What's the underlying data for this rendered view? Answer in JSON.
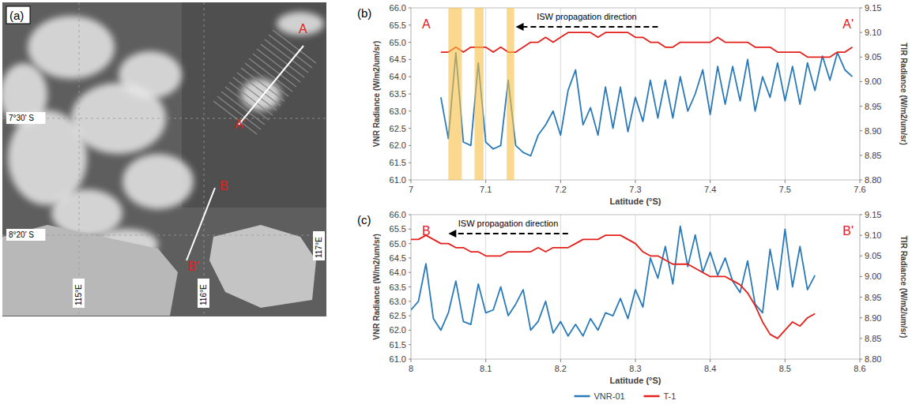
{
  "image_panel": {
    "label": "(a)",
    "lat_labels": [
      "7°30' S",
      "8°20' S"
    ],
    "lon_labels": [
      "115°E",
      "116°E",
      "117°E"
    ],
    "transects": [
      [
        "A",
        "A'"
      ],
      [
        "B",
        "B'"
      ]
    ]
  },
  "chart_data": [
    {
      "type": "line",
      "panel_label": "(b)",
      "x_label": "Latitude (°S)",
      "y_label": "VNR Radiance (W/m2/um/sr)",
      "y2_label": "TIR Radiance (W/m2/um/sr)",
      "start_label": "A",
      "end_label": "A'",
      "annotation": "ISW propagation direction",
      "annotation_arrow_x": [
        7.33,
        7.14
      ],
      "highlight_bands": [
        [
          7.05,
          7.068
        ],
        [
          7.085,
          7.097
        ],
        [
          7.128,
          7.138
        ]
      ],
      "xlim": [
        7,
        7.6
      ],
      "xticks": [
        7,
        7.1,
        7.2,
        7.3,
        7.4,
        7.5,
        7.6
      ],
      "ylim": [
        61,
        66
      ],
      "yticks": [
        {
          "value": 61,
          "label": "61.0"
        },
        {
          "value": 61.5,
          "label": "61.5"
        },
        {
          "value": 62,
          "label": "62.0"
        },
        {
          "value": 62.5,
          "label": "62.5"
        },
        {
          "value": 63,
          "label": "63.0"
        },
        {
          "value": 63.5,
          "label": "63.5"
        },
        {
          "value": 64,
          "label": "64.0"
        },
        {
          "value": 64.5,
          "label": "64.5"
        },
        {
          "value": 65,
          "label": "65.0"
        },
        {
          "value": 65.5,
          "label": "65.5"
        },
        {
          "value": 66,
          "label": "66.0"
        }
      ],
      "y2lim": [
        8.8,
        9.15
      ],
      "y2ticks": [
        {
          "value": 8.8,
          "label": "8.80"
        },
        {
          "value": 8.85,
          "label": "8.85"
        },
        {
          "value": 8.9,
          "label": "8.90"
        },
        {
          "value": 8.95,
          "label": "8.95"
        },
        {
          "value": 9,
          "label": "9.00"
        },
        {
          "value": 9.05,
          "label": "9.05"
        },
        {
          "value": 9.1,
          "label": "9.10"
        },
        {
          "value": 9.15,
          "label": "9.15"
        }
      ],
      "grid": "x",
      "x": [
        7.04,
        7.05,
        7.06,
        7.07,
        7.08,
        7.09,
        7.1,
        7.11,
        7.12,
        7.13,
        7.14,
        7.15,
        7.16,
        7.17,
        7.18,
        7.19,
        7.2,
        7.21,
        7.22,
        7.23,
        7.24,
        7.25,
        7.26,
        7.27,
        7.28,
        7.29,
        7.3,
        7.31,
        7.32,
        7.33,
        7.34,
        7.35,
        7.36,
        7.37,
        7.38,
        7.39,
        7.4,
        7.41,
        7.42,
        7.43,
        7.44,
        7.45,
        7.46,
        7.47,
        7.48,
        7.49,
        7.5,
        7.51,
        7.52,
        7.53,
        7.54,
        7.55,
        7.56,
        7.57,
        7.58,
        7.59
      ],
      "series": [
        {
          "name": "VNR-01",
          "color": "#2a7ab9",
          "values": [
            63.4,
            62.2,
            64.7,
            62.1,
            62.0,
            64.4,
            62.1,
            61.9,
            62.0,
            63.9,
            62.0,
            61.8,
            61.7,
            62.3,
            62.6,
            63.0,
            62.3,
            63.6,
            64.2,
            62.6,
            63.1,
            62.3,
            63.7,
            62.5,
            63.7,
            62.4,
            63.4,
            62.7,
            63.9,
            62.8,
            63.9,
            62.8,
            64.0,
            63.0,
            63.5,
            64.2,
            62.9,
            64.3,
            63.2,
            64.3,
            63.3,
            64.5,
            63.0,
            64.0,
            63.4,
            64.4,
            63.3,
            64.3,
            63.2,
            64.4,
            63.6,
            64.6,
            63.9,
            64.7,
            64.2,
            64.0
          ]
        },
        {
          "name": "T-1",
          "color": "#e3201b",
          "axis": "y2",
          "values": [
            9.06,
            9.06,
            9.07,
            9.06,
            9.07,
            9.07,
            9.07,
            9.06,
            9.07,
            9.06,
            9.06,
            9.07,
            9.08,
            9.08,
            9.09,
            9.08,
            9.09,
            9.1,
            9.1,
            9.1,
            9.1,
            9.09,
            9.1,
            9.1,
            9.1,
            9.1,
            9.09,
            9.09,
            9.08,
            9.08,
            9.07,
            9.07,
            9.08,
            9.08,
            9.08,
            9.08,
            9.08,
            9.09,
            9.08,
            9.08,
            9.08,
            9.08,
            9.07,
            9.07,
            9.07,
            9.06,
            9.06,
            9.06,
            9.06,
            9.05,
            9.05,
            9.05,
            9.05,
            9.06,
            9.06,
            9.07
          ]
        }
      ]
    },
    {
      "type": "line",
      "panel_label": "(c)",
      "x_label": "Latitude (°S)",
      "y_label": "VNR Radiance (W/m2/um/sr)",
      "y2_label": "TIR Radiance (W/m2/um/sr)",
      "start_label": "B",
      "end_label": "B'",
      "annotation": "ISW propagation direction",
      "annotation_arrow_x": [
        8.21,
        8.05
      ],
      "xlim": [
        8,
        8.6
      ],
      "xticks": [
        8,
        8.1,
        8.2,
        8.3,
        8.4,
        8.5,
        8.6
      ],
      "ylim": [
        61,
        66
      ],
      "yticks": [
        {
          "value": 61,
          "label": "61.0"
        },
        {
          "value": 61.5,
          "label": "61.5"
        },
        {
          "value": 62,
          "label": "62.0"
        },
        {
          "value": 62.5,
          "label": "62.5"
        },
        {
          "value": 63,
          "label": "63.0"
        },
        {
          "value": 63.5,
          "label": "63.5"
        },
        {
          "value": 64,
          "label": "64.0"
        },
        {
          "value": 64.5,
          "label": "64.5"
        },
        {
          "value": 65,
          "label": "65.0"
        },
        {
          "value": 65.5,
          "label": "65.5"
        },
        {
          "value": 66,
          "label": "66.0"
        }
      ],
      "y2lim": [
        8.8,
        9.15
      ],
      "y2ticks": [
        {
          "value": 8.8,
          "label": "8.80"
        },
        {
          "value": 8.85,
          "label": "8.85"
        },
        {
          "value": 8.9,
          "label": "8.90"
        },
        {
          "value": 8.95,
          "label": "8.95"
        },
        {
          "value": 9,
          "label": "9.00"
        },
        {
          "value": 9.05,
          "label": "9.05"
        },
        {
          "value": 9.1,
          "label": "9.10"
        },
        {
          "value": 9.15,
          "label": "9.15"
        }
      ],
      "grid": "x",
      "legend": "bottom",
      "x": [
        8.0,
        8.01,
        8.02,
        8.03,
        8.04,
        8.05,
        8.06,
        8.07,
        8.08,
        8.09,
        8.1,
        8.11,
        8.12,
        8.13,
        8.14,
        8.15,
        8.16,
        8.17,
        8.18,
        8.19,
        8.2,
        8.21,
        8.22,
        8.23,
        8.24,
        8.25,
        8.26,
        8.27,
        8.28,
        8.29,
        8.3,
        8.31,
        8.32,
        8.33,
        8.34,
        8.35,
        8.36,
        8.37,
        8.38,
        8.39,
        8.4,
        8.41,
        8.42,
        8.43,
        8.44,
        8.45,
        8.46,
        8.47,
        8.48,
        8.49,
        8.5,
        8.51,
        8.52,
        8.53,
        8.54
      ],
      "series": [
        {
          "name": "VNR-01",
          "color": "#2a7ab9",
          "values": [
            62.7,
            63.0,
            64.3,
            62.4,
            62.0,
            62.6,
            63.7,
            62.3,
            62.2,
            63.6,
            62.6,
            62.7,
            63.5,
            62.5,
            62.9,
            63.4,
            62.0,
            62.3,
            63.0,
            61.9,
            62.3,
            61.8,
            62.2,
            61.8,
            62.4,
            62.0,
            62.6,
            62.5,
            63.1,
            62.4,
            63.4,
            62.8,
            64.5,
            63.8,
            64.9,
            63.6,
            65.6,
            64.2,
            65.3,
            64.0,
            64.7,
            63.9,
            64.5,
            63.7,
            63.3,
            64.4,
            62.9,
            62.6,
            64.8,
            63.4,
            65.5,
            63.5,
            64.9,
            63.4,
            63.9
          ]
        },
        {
          "name": "T-1",
          "color": "#e3201b",
          "axis": "y2",
          "values": [
            9.09,
            9.09,
            9.1,
            9.09,
            9.08,
            9.08,
            9.07,
            9.07,
            9.06,
            9.06,
            9.05,
            9.05,
            9.05,
            9.06,
            9.06,
            9.06,
            9.06,
            9.07,
            9.06,
            9.07,
            9.07,
            9.07,
            9.08,
            9.09,
            9.09,
            9.09,
            9.1,
            9.1,
            9.1,
            9.09,
            9.08,
            9.06,
            9.05,
            9.05,
            9.04,
            9.03,
            9.03,
            9.03,
            9.02,
            9.01,
            9.0,
            9.0,
            9.0,
            8.99,
            8.98,
            8.96,
            8.93,
            8.89,
            8.86,
            8.85,
            8.87,
            8.89,
            8.88,
            8.9,
            8.91
          ]
        }
      ]
    }
  ]
}
